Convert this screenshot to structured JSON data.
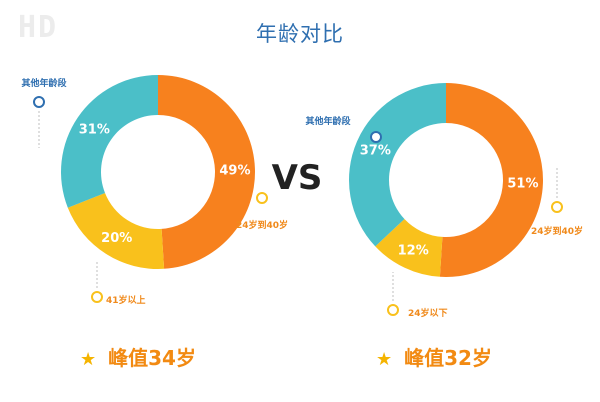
{
  "watermark": "HD",
  "title": "年龄对比",
  "vs_label": "VS",
  "colors": {
    "orange": "#f7811e",
    "teal": "#4bbfc8",
    "yellow": "#f9c11c",
    "label_orange": "#f08a1c",
    "label_blue": "#2f6fb0",
    "title_blue": "#2f6fb0",
    "star": "#f5b400"
  },
  "chart_data": [
    {
      "type": "pie",
      "title": "",
      "slices": [
        {
          "label": "24岁到40岁",
          "value": 49,
          "display": "49%",
          "color": "#f7811e"
        },
        {
          "label": "41岁以上",
          "value": 20,
          "display": "20%",
          "color": "#f9c11c"
        },
        {
          "label": "其他年龄段",
          "value": 31,
          "display": "31%",
          "color": "#4bbfc8"
        }
      ],
      "peak_text": "峰值34岁"
    },
    {
      "type": "pie",
      "title": "",
      "slices": [
        {
          "label": "24岁到40岁",
          "value": 51,
          "display": "51%",
          "color": "#f7811e"
        },
        {
          "label": "24岁以下",
          "value": 12,
          "display": "12%",
          "color": "#f9c11c"
        },
        {
          "label": "其他年龄段",
          "value": 37,
          "display": "37%",
          "color": "#4bbfc8"
        }
      ],
      "peak_text": "峰值32岁"
    }
  ]
}
